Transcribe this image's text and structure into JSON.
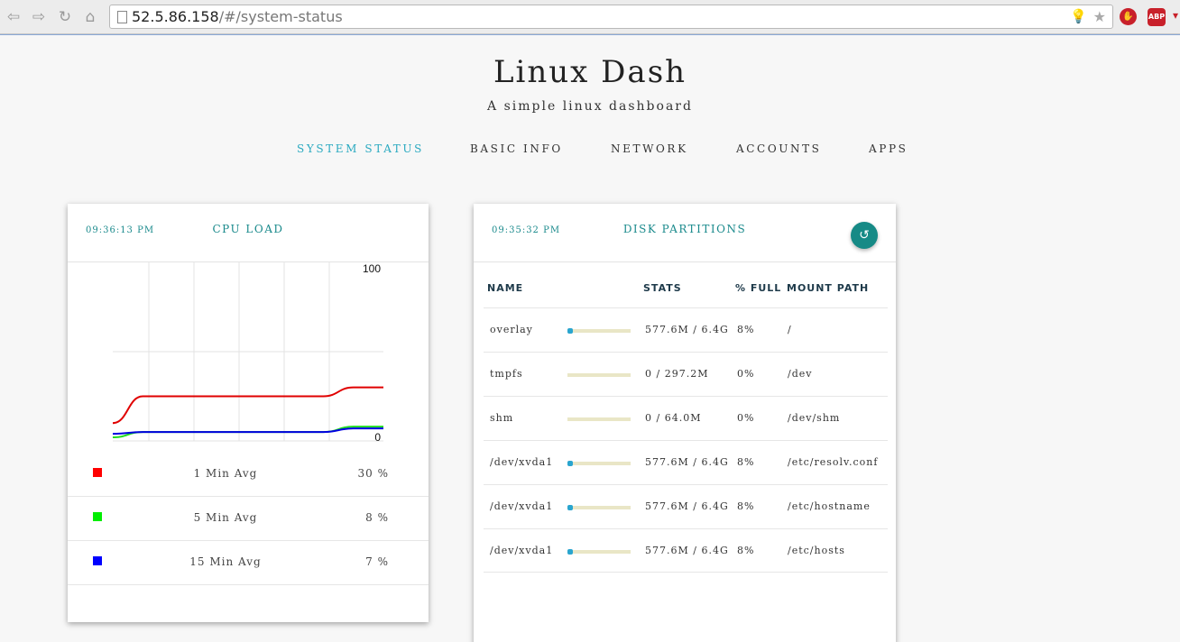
{
  "browser": {
    "url_host": "52.5.86.158",
    "url_path": "/#/system-status",
    "abp_label": "ABP"
  },
  "header": {
    "title": "Linux Dash",
    "subtitle": "A simple linux dashboard"
  },
  "nav": {
    "items": [
      {
        "label": "SYSTEM STATUS",
        "active": true
      },
      {
        "label": "BASIC INFO",
        "active": false
      },
      {
        "label": "NETWORK",
        "active": false
      },
      {
        "label": "ACCOUNTS",
        "active": false
      },
      {
        "label": "APPS",
        "active": false
      }
    ]
  },
  "cpu_card": {
    "time": "09:36:13 PM",
    "title": "CPU LOAD",
    "y_max_label": "100",
    "y_min_label": "0",
    "legend": [
      {
        "label": "1 Min Avg",
        "value": "30 %",
        "color": "#ff0000"
      },
      {
        "label": "5 Min Avg",
        "value": "8 %",
        "color": "#00ee00"
      },
      {
        "label": "15 Min Avg",
        "value": "7 %",
        "color": "#0000ff"
      }
    ]
  },
  "chart_data": {
    "type": "line",
    "ylim": [
      0,
      100
    ],
    "series": [
      {
        "name": "1 Min Avg",
        "color": "#e00000",
        "values": [
          10,
          25,
          25,
          25,
          25,
          25,
          25,
          25,
          30,
          30
        ]
      },
      {
        "name": "5 Min Avg",
        "color": "#22dd22",
        "values": [
          2,
          5,
          5,
          5,
          5,
          5,
          5,
          5,
          8,
          8
        ]
      },
      {
        "name": "15 Min Avg",
        "color": "#0000e0",
        "values": [
          4,
          5,
          5,
          5,
          5,
          5,
          5,
          5,
          7,
          7
        ]
      }
    ]
  },
  "disk_card": {
    "time": "09:35:32 PM",
    "title": "DISK PARTITIONS",
    "refresh_icon": "↺",
    "columns": [
      "NAME",
      "STATS",
      "% FULL",
      "MOUNT PATH"
    ],
    "rows": [
      {
        "name": "overlay",
        "stats": "577.6M / 6.4G",
        "full": "8%",
        "full_value": 8,
        "mount": "/"
      },
      {
        "name": "tmpfs",
        "stats": "0 / 297.2M",
        "full": "0%",
        "full_value": 0,
        "mount": "/dev"
      },
      {
        "name": "shm",
        "stats": "0 / 64.0M",
        "full": "0%",
        "full_value": 0,
        "mount": "/dev/shm"
      },
      {
        "name": "/dev/xvda1",
        "stats": "577.6M / 6.4G",
        "full": "8%",
        "full_value": 8,
        "mount": "/etc/resolv.conf"
      },
      {
        "name": "/dev/xvda1",
        "stats": "577.6M / 6.4G",
        "full": "8%",
        "full_value": 8,
        "mount": "/etc/hostname"
      },
      {
        "name": "/dev/xvda1",
        "stats": "577.6M / 6.4G",
        "full": "8%",
        "full_value": 8,
        "mount": "/etc/hosts"
      }
    ]
  }
}
